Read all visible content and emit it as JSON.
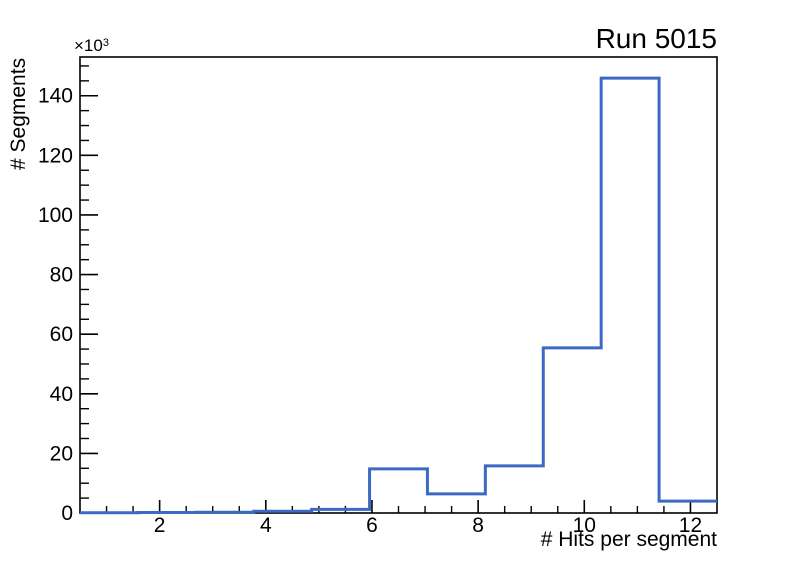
{
  "page": {
    "background_color": "#ffffff",
    "text_color": "#000000"
  },
  "chart_data": {
    "type": "histogram-step",
    "title": "Run 5015",
    "xlabel": "# Hits per segment",
    "ylabel": "# Segments",
    "y_axis_multiplier": {
      "base": "×10",
      "exp": "3"
    },
    "bin_edges": [
      0.5,
      1.591,
      2.682,
      3.773,
      4.864,
      5.955,
      7.045,
      8.136,
      9.227,
      10.318,
      11.409,
      12.5
    ],
    "values": [
      100,
      150,
      250,
      600,
      1200,
      14800,
      6400,
      15800,
      55400,
      145900,
      4000
    ],
    "xlim": [
      0.5,
      12.5
    ],
    "ylim": [
      0,
      153000
    ],
    "x_major_ticks": [
      2,
      4,
      6,
      8,
      10,
      12
    ],
    "x_tick_labels": [
      "2",
      "4",
      "6",
      "8",
      "10",
      "12"
    ],
    "x_minor_step": 0.5,
    "y_major_ticks": [
      0,
      20000,
      40000,
      60000,
      80000,
      100000,
      120000,
      140000
    ],
    "y_tick_labels": [
      "0",
      "20",
      "40",
      "60",
      "80",
      "100",
      "120",
      "140"
    ],
    "y_minor_step": 5000,
    "grid": false,
    "legend": null,
    "line_color": "#3b6ac4",
    "frame_color": "#000000"
  }
}
